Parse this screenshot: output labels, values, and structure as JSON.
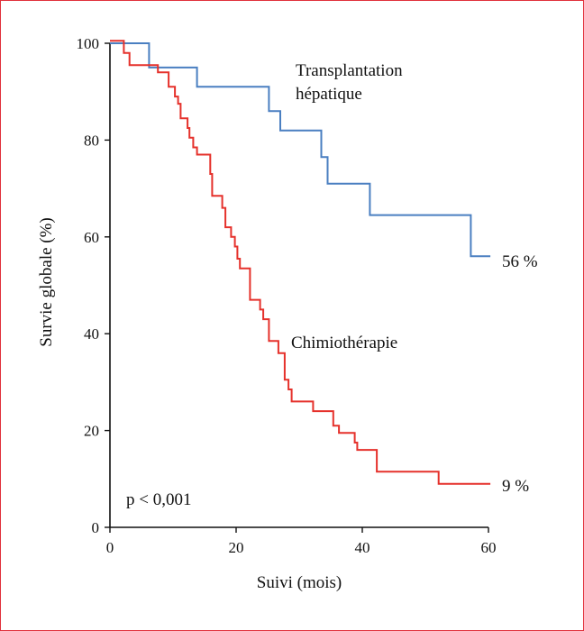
{
  "chart_data": {
    "type": "line",
    "xlabel": "Suivi (mois)",
    "ylabel": "Survie globale (%)",
    "xlim": [
      0,
      60
    ],
    "ylim": [
      0,
      100
    ],
    "xticks": [
      0,
      20,
      40,
      60
    ],
    "yticks": [
      0,
      20,
      40,
      60,
      80,
      100
    ],
    "grid": false,
    "annotation": "p < 0,001",
    "series": [
      {
        "name": "Transplantation hépatique",
        "name_lines": [
          "Transplantation",
          "hépatique"
        ],
        "end_label": "56 %",
        "color": "#4a7fc1",
        "step_points": [
          [
            0,
            100
          ],
          [
            6.2,
            100
          ],
          [
            6.2,
            95
          ],
          [
            13.8,
            95
          ],
          [
            13.8,
            91
          ],
          [
            25.2,
            91
          ],
          [
            25.2,
            86
          ],
          [
            27,
            86
          ],
          [
            27,
            82
          ],
          [
            33.5,
            82
          ],
          [
            33.5,
            76.5
          ],
          [
            34.5,
            76.5
          ],
          [
            34.5,
            71
          ],
          [
            41.2,
            71
          ],
          [
            41.2,
            64.5
          ],
          [
            57.2,
            64.5
          ],
          [
            57.2,
            56
          ],
          [
            60.3,
            56
          ]
        ]
      },
      {
        "name": "Chimiothérapie",
        "name_lines": [
          "Chimiothérapie"
        ],
        "end_label": "9 %",
        "color": "#e5312b",
        "step_points": [
          [
            0,
            100.5
          ],
          [
            2.2,
            100.5
          ],
          [
            2.2,
            98
          ],
          [
            3.1,
            98
          ],
          [
            3.1,
            95.5
          ],
          [
            7.6,
            95.5
          ],
          [
            7.6,
            94
          ],
          [
            9.3,
            94
          ],
          [
            9.3,
            91
          ],
          [
            10.3,
            91
          ],
          [
            10.3,
            89
          ],
          [
            10.8,
            89
          ],
          [
            10.8,
            87.5
          ],
          [
            11.2,
            87.5
          ],
          [
            11.2,
            84.5
          ],
          [
            12.3,
            84.5
          ],
          [
            12.3,
            82.5
          ],
          [
            12.6,
            82.5
          ],
          [
            12.6,
            80.5
          ],
          [
            13.2,
            80.5
          ],
          [
            13.2,
            78.5
          ],
          [
            13.8,
            78.5
          ],
          [
            13.8,
            77
          ],
          [
            15.9,
            77
          ],
          [
            15.9,
            73
          ],
          [
            16.2,
            73
          ],
          [
            16.2,
            68.5
          ],
          [
            17.8,
            68.5
          ],
          [
            17.8,
            66
          ],
          [
            18.3,
            66
          ],
          [
            18.3,
            62
          ],
          [
            19.2,
            62
          ],
          [
            19.2,
            60
          ],
          [
            19.8,
            60
          ],
          [
            19.8,
            58
          ],
          [
            20.2,
            58
          ],
          [
            20.2,
            55.5
          ],
          [
            20.6,
            55.5
          ],
          [
            20.6,
            53.5
          ],
          [
            22.2,
            53.5
          ],
          [
            22.2,
            47
          ],
          [
            23.8,
            47
          ],
          [
            23.8,
            45
          ],
          [
            24.3,
            45
          ],
          [
            24.3,
            43
          ],
          [
            25.2,
            43
          ],
          [
            25.2,
            38.5
          ],
          [
            26.7,
            38.5
          ],
          [
            26.7,
            36
          ],
          [
            27.7,
            36
          ],
          [
            27.7,
            30.5
          ],
          [
            28.3,
            30.5
          ],
          [
            28.3,
            28.5
          ],
          [
            28.8,
            28.5
          ],
          [
            28.8,
            26
          ],
          [
            32.2,
            26
          ],
          [
            32.2,
            24
          ],
          [
            35.4,
            24
          ],
          [
            35.4,
            21
          ],
          [
            36.3,
            21
          ],
          [
            36.3,
            19.5
          ],
          [
            38.8,
            19.5
          ],
          [
            38.8,
            17.5
          ],
          [
            39.2,
            17.5
          ],
          [
            39.2,
            16
          ],
          [
            42.3,
            16
          ],
          [
            42.3,
            11.5
          ],
          [
            52.1,
            11.5
          ],
          [
            52.1,
            9
          ],
          [
            60.3,
            9
          ]
        ]
      }
    ]
  }
}
